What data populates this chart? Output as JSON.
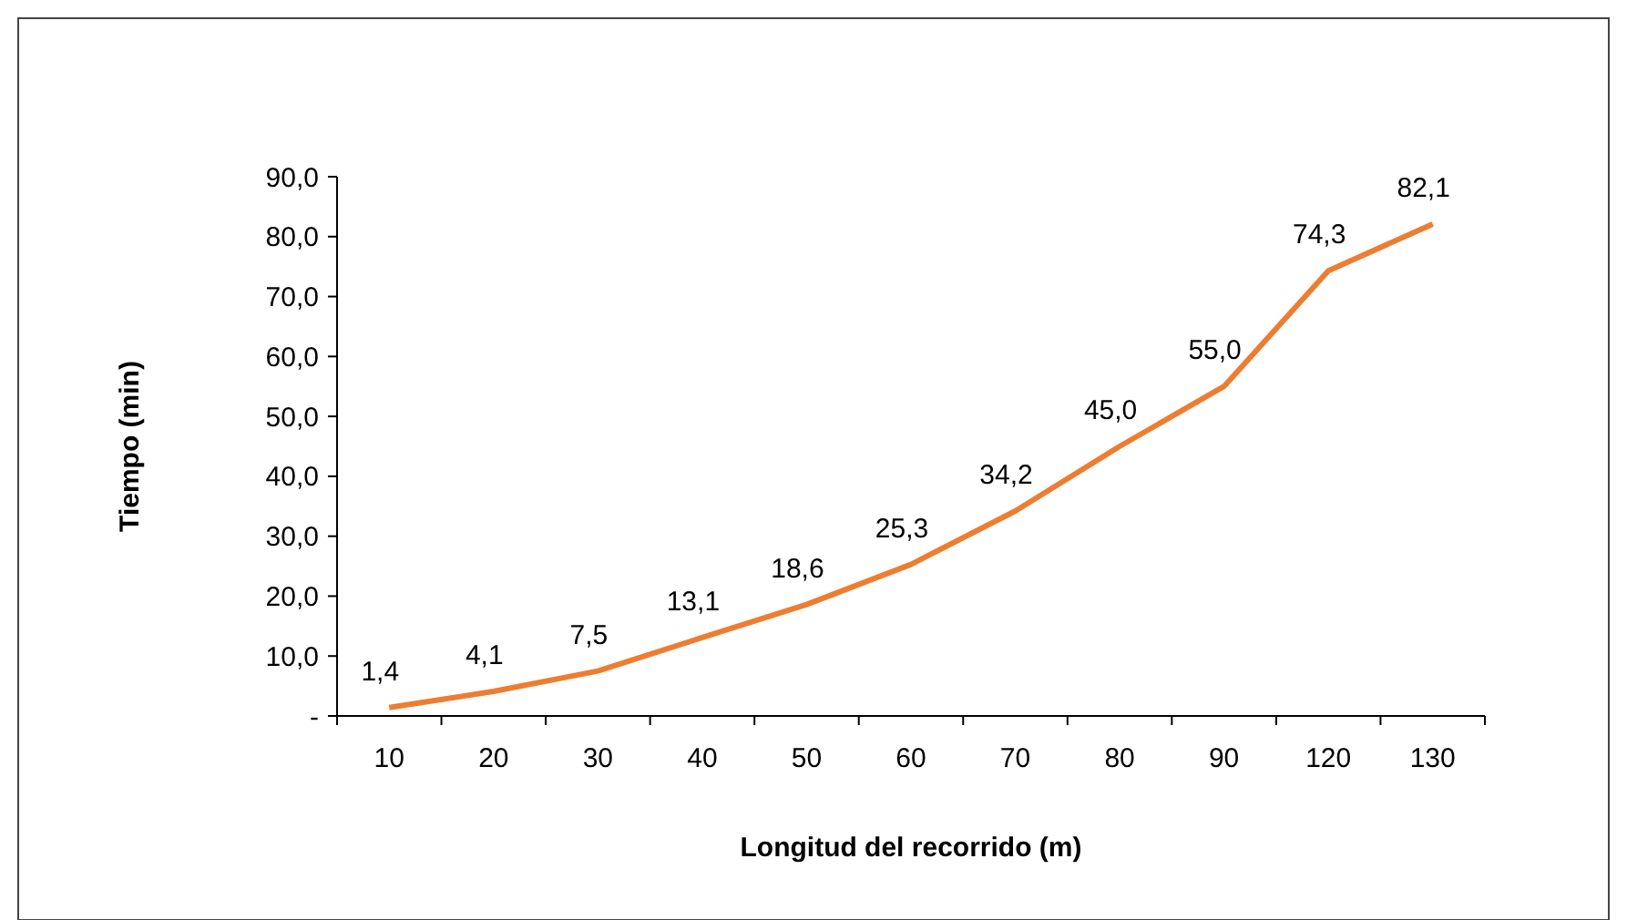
{
  "chart_data": {
    "type": "line",
    "xlabel": "Longitud del recorrido (m)",
    "ylabel": "Tiempo (min)",
    "categories": [
      "10",
      "20",
      "30",
      "40",
      "50",
      "60",
      "70",
      "80",
      "90",
      "120",
      "130"
    ],
    "values": [
      1.4,
      4.1,
      7.5,
      13.1,
      18.6,
      25.3,
      34.2,
      45.0,
      55.0,
      74.3,
      82.1
    ],
    "value_labels": [
      "1,4",
      "4,1",
      "7,5",
      "13,1",
      "18,6",
      "25,3",
      "34,2",
      "45,0",
      "55,0",
      "74,3",
      "82,1"
    ],
    "color": "#ed7d31",
    "ylim": [
      0,
      90
    ],
    "yticks": [
      {
        "value": 0,
        "label": "-"
      },
      {
        "value": 10,
        "label": "10,0"
      },
      {
        "value": 20,
        "label": "20,0"
      },
      {
        "value": 30,
        "label": "30,0"
      },
      {
        "value": 40,
        "label": "40,0"
      },
      {
        "value": 50,
        "label": "50,0"
      },
      {
        "value": 60,
        "label": "60,0"
      },
      {
        "value": 70,
        "label": "70,0"
      },
      {
        "value": 80,
        "label": "80,0"
      },
      {
        "value": 90,
        "label": "90,0"
      }
    ],
    "grid": false,
    "marker": "none",
    "line_style": "solid"
  }
}
